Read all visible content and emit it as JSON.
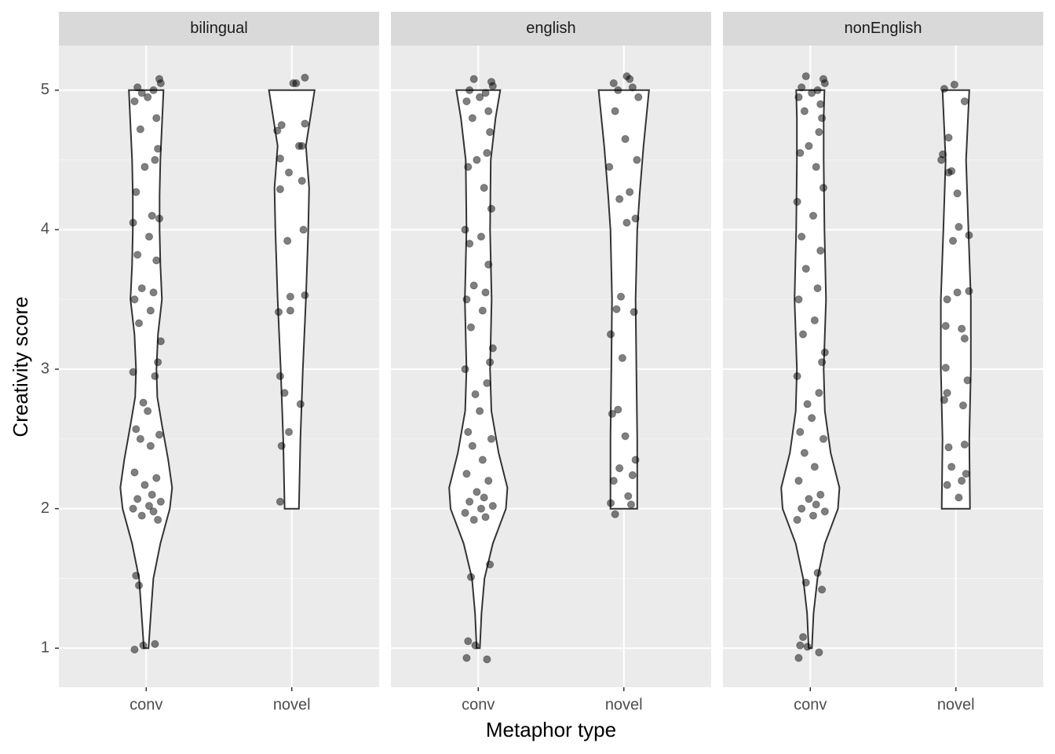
{
  "chart_data": {
    "type": "violin",
    "x_label": "Metaphor type",
    "y_label": "Creativity score",
    "ylim": [
      0.72,
      5.32
    ],
    "yticks": [
      1,
      2,
      3,
      4,
      5
    ],
    "grid": true,
    "violin_fill": "#ffffff",
    "violin_stroke": "#333333",
    "point_color": "#000000",
    "facets": [
      {
        "label": "bilingual",
        "groups": [
          {
            "category": "conv",
            "violin": {
              "y": [
                1,
                1.25,
                1.5,
                1.75,
                2,
                2.15,
                2.35,
                2.6,
                2.8,
                3.0,
                3.25,
                3.5,
                3.75,
                4,
                4.25,
                4.5,
                4.75,
                5
              ],
              "half_width": [
                0.016,
                0.032,
                0.049,
                0.097,
                0.162,
                0.178,
                0.151,
                0.108,
                0.076,
                0.07,
                0.081,
                0.108,
                0.097,
                0.092,
                0.092,
                0.097,
                0.108,
                0.119
              ]
            },
            "points": {
              "jitter": [
                -0.08,
                0.06,
                -0.02,
                -0.07,
                -0.05,
                0.08,
                -0.03,
                0.05,
                -0.09,
                0.02,
                0.1,
                -0.06,
                0.04,
                -0.01,
                0.07,
                -0.08,
                0.03,
                -0.04,
                0.09,
                -0.07,
                0.01,
                -0.02,
                0.06,
                -0.09,
                0.08,
                0.1,
                -0.05,
                0.03,
                -0.08,
                0.05,
                -0.03,
                0.07,
                -0.06,
                0.02,
                -0.09,
                0.09,
                0.04,
                -0.07,
                -0.01,
                0.06,
                0.08,
                -0.04,
                0.07,
                -0.08,
                0.01,
                0.05,
                -0.06,
                0.1,
                0.09,
                -0.03
              ],
              "values": [
                0.99,
                1.03,
                1.02,
                1.52,
                1.45,
                1.92,
                1.95,
                1.98,
                2.0,
                2.02,
                2.05,
                2.07,
                2.1,
                2.17,
                2.22,
                2.26,
                2.45,
                2.5,
                2.53,
                2.57,
                2.7,
                2.76,
                2.95,
                2.98,
                3.05,
                3.2,
                3.33,
                3.42,
                3.5,
                3.55,
                3.58,
                3.78,
                3.82,
                3.95,
                4.05,
                4.08,
                4.1,
                4.27,
                4.45,
                4.5,
                4.58,
                4.72,
                4.8,
                4.92,
                4.95,
                5.0,
                5.02,
                5.05,
                5.08,
                4.98
              ]
            }
          },
          {
            "category": "novel",
            "violin": {
              "y": [
                2,
                2.5,
                3,
                3.5,
                4,
                4.3,
                4.6,
                5
              ],
              "half_width": [
                0.049,
                0.059,
                0.076,
                0.097,
                0.113,
                0.119,
                0.097,
                0.157
              ]
            },
            "points": {
              "jitter": [
                -0.08,
                -0.07,
                -0.02,
                0.06,
                -0.05,
                -0.08,
                -0.09,
                -0.01,
                -0.01,
                0.09,
                -0.03,
                0.08,
                -0.08,
                0.07,
                -0.02,
                -0.08,
                0.05,
                0.07,
                -0.1,
                -0.07,
                0.09,
                0.01,
                0.03,
                0.09
              ],
              "values": [
                2.05,
                2.45,
                2.55,
                2.75,
                2.83,
                2.95,
                3.41,
                3.42,
                3.52,
                3.53,
                3.92,
                4.0,
                4.29,
                4.35,
                4.41,
                4.51,
                4.6,
                4.6,
                4.71,
                4.75,
                4.76,
                5.05,
                5.05,
                5.09
              ]
            }
          }
        ]
      },
      {
        "label": "english",
        "groups": [
          {
            "category": "conv",
            "violin": {
              "y": [
                1,
                1.25,
                1.5,
                1.75,
                2,
                2.15,
                2.4,
                2.7,
                3,
                3.5,
                4,
                4.5,
                4.8,
                5
              ],
              "half_width": [
                0.011,
                0.022,
                0.043,
                0.1,
                0.19,
                0.2,
                0.14,
                0.09,
                0.081,
                0.092,
                0.081,
                0.086,
                0.119,
                0.151
              ]
            },
            "points": {
              "jitter": [
                -0.08,
                0.06,
                -0.02,
                -0.07,
                -0.05,
                0.08,
                -0.03,
                0.05,
                -0.09,
                0.02,
                0.1,
                -0.06,
                0.04,
                -0.01,
                0.07,
                -0.08,
                0.03,
                -0.04,
                0.09,
                -0.07,
                0.01,
                -0.02,
                0.06,
                -0.09,
                0.08,
                0.1,
                -0.05,
                0.03,
                -0.08,
                0.05,
                -0.03,
                0.07,
                -0.06,
                0.02,
                -0.09,
                0.09,
                0.04,
                -0.07,
                -0.01,
                0.06,
                0.08,
                -0.04,
                0.07,
                -0.08,
                0.01,
                0.05,
                -0.06,
                0.1,
                0.09,
                -0.03
              ],
              "values": [
                0.93,
                0.92,
                1.02,
                1.05,
                1.51,
                1.6,
                1.92,
                1.94,
                1.97,
                2.0,
                2.02,
                2.05,
                2.08,
                2.12,
                2.2,
                2.25,
                2.35,
                2.45,
                2.5,
                2.55,
                2.7,
                2.82,
                2.9,
                3.0,
                3.05,
                3.15,
                3.3,
                3.42,
                3.5,
                3.55,
                3.6,
                3.75,
                3.9,
                3.95,
                4.0,
                4.15,
                4.3,
                4.45,
                4.5,
                4.55,
                4.7,
                4.8,
                4.85,
                4.92,
                4.95,
                4.98,
                5.0,
                5.03,
                5.06,
                5.08
              ]
            }
          },
          {
            "category": "novel",
            "violin": {
              "y": [
                2,
                2.5,
                3,
                3.5,
                4,
                4.25,
                4.6,
                5
              ],
              "half_width": [
                0.092,
                0.092,
                0.086,
                0.081,
                0.092,
                0.108,
                0.135,
                0.173
              ]
            },
            "points": {
              "jitter": [
                -0.06,
                0.05,
                -0.09,
                0.03,
                -0.07,
                0.06,
                -0.03,
                0.08,
                0.01,
                -0.08,
                -0.04,
                -0.01,
                -0.09,
                0.07,
                -0.05,
                -0.02,
                0.02,
                0.08,
                -0.03,
                0.04,
                -0.1,
                0.09,
                0.01,
                -0.06,
                0.1,
                -0.04,
                0.06,
                -0.07,
                0.04,
                0.02
              ],
              "values": [
                1.96,
                2.03,
                2.04,
                2.09,
                2.2,
                2.24,
                2.29,
                2.35,
                2.52,
                2.68,
                2.71,
                3.08,
                3.25,
                3.41,
                3.43,
                3.52,
                4.05,
                4.08,
                4.22,
                4.27,
                4.45,
                4.5,
                4.65,
                4.85,
                4.95,
                5.0,
                5.02,
                5.05,
                5.08,
                5.1
              ]
            }
          }
        ]
      },
      {
        "label": "nonEnglish",
        "groups": [
          {
            "category": "conv",
            "violin": {
              "y": [
                1,
                1.25,
                1.5,
                1.75,
                2,
                2.15,
                2.4,
                2.7,
                3,
                3.5,
                4,
                4.5,
                4.8,
                5
              ],
              "half_width": [
                0.011,
                0.022,
                0.049,
                0.1,
                0.19,
                0.2,
                0.14,
                0.1,
                0.092,
                0.108,
                0.097,
                0.092,
                0.092,
                0.097
              ]
            },
            "points": {
              "jitter": [
                -0.08,
                0.06,
                -0.02,
                -0.07,
                -0.05,
                0.08,
                -0.03,
                0.05,
                -0.09,
                0.02,
                0.1,
                -0.06,
                0.04,
                -0.01,
                0.07,
                -0.08,
                0.03,
                -0.04,
                0.09,
                -0.07,
                0.01,
                -0.02,
                0.06,
                -0.09,
                0.08,
                0.1,
                -0.05,
                0.03,
                -0.08,
                0.05,
                -0.03,
                0.07,
                -0.06,
                0.02,
                -0.09,
                0.09,
                0.04,
                -0.07,
                -0.01,
                0.06,
                0.08,
                -0.04,
                0.07,
                -0.08,
                0.01,
                0.05,
                -0.06,
                0.1,
                0.09,
                -0.03
              ],
              "values": [
                0.93,
                0.97,
                1.01,
                1.02,
                1.08,
                1.42,
                1.47,
                1.54,
                1.92,
                1.95,
                1.98,
                2.0,
                2.03,
                2.07,
                2.1,
                2.2,
                2.3,
                2.4,
                2.5,
                2.55,
                2.65,
                2.75,
                2.83,
                2.95,
                3.05,
                3.12,
                3.25,
                3.35,
                3.5,
                3.58,
                3.72,
                3.85,
                3.95,
                4.1,
                4.2,
                4.3,
                4.45,
                4.55,
                4.6,
                4.7,
                4.8,
                4.85,
                4.9,
                4.95,
                4.98,
                5.0,
                5.02,
                5.05,
                5.08,
                5.1
              ]
            }
          },
          {
            "category": "novel",
            "violin": {
              "y": [
                2,
                2.5,
                3,
                3.5,
                4,
                4.5,
                5
              ],
              "half_width": [
                0.097,
                0.092,
                0.103,
                0.103,
                0.086,
                0.07,
                0.092
              ]
            },
            "points": {
              "jitter": [
                0.02,
                -0.06,
                0.04,
                0.07,
                -0.03,
                -0.05,
                0.06,
                0.05,
                -0.08,
                -0.06,
                0.08,
                -0.07,
                0.06,
                0.04,
                -0.07,
                -0.06,
                0.01,
                0.09,
                -0.02,
                0.09,
                0.02,
                0.01,
                -0.05,
                -0.03,
                -0.1,
                -0.09,
                -0.05,
                0.06,
                -0.08,
                -0.01
              ],
              "values": [
                2.08,
                2.17,
                2.2,
                2.25,
                2.3,
                2.44,
                2.46,
                2.74,
                2.78,
                2.83,
                2.92,
                3.01,
                3.22,
                3.29,
                3.31,
                3.5,
                3.55,
                3.56,
                3.92,
                3.96,
                4.02,
                4.26,
                4.41,
                4.42,
                4.5,
                4.54,
                4.66,
                4.92,
                5.01,
                5.04
              ]
            }
          }
        ]
      }
    ]
  }
}
